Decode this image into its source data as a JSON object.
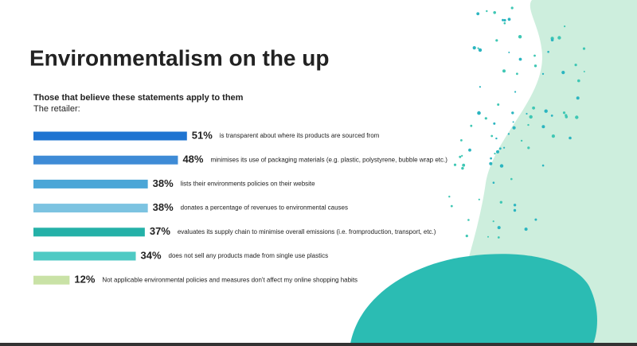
{
  "chart_data": {
    "type": "bar",
    "orientation": "horizontal",
    "title": "Environmentalism on the up",
    "subtitle": "Those that believe these statements apply to them",
    "caption": "The retailer:",
    "categories": [
      "is transparent about  where its products are sourced from",
      "minimises its use of packaging materials  (e.g. plastic, polystyrene, bubble wrap etc.)",
      "lists their environments policies on their website",
      "donates a percentage of revenues to environmental causes",
      "evaluates its supply chain to minimise overall emissions (i.e. fromproduction, transport, etc.)",
      "does not sell any products made from single use plastics",
      "Not applicable environmental policies and measures don't affect my online shopping habits"
    ],
    "values": [
      51,
      48,
      38,
      38,
      37,
      34,
      12
    ],
    "value_labels": [
      "51%",
      "48%",
      "38%",
      "38%",
      "37%",
      "34%",
      "12%"
    ],
    "colors": [
      "#1f74d1",
      "#3e8bd6",
      "#4ba6d7",
      "#7cc3e1",
      "#24b1a8",
      "#4fcac4",
      "#c9e2a6"
    ]
  }
}
